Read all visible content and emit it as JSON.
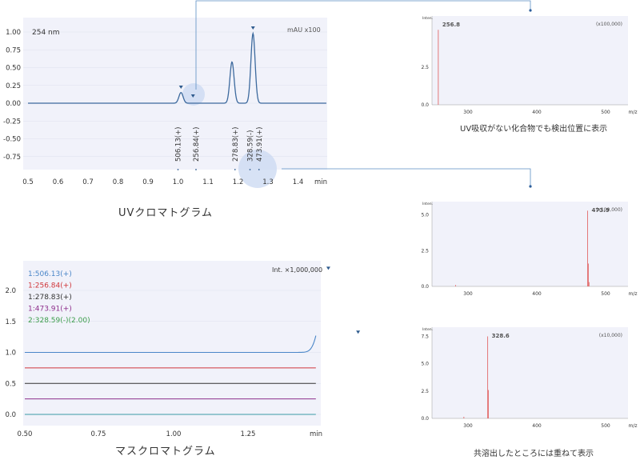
{
  "chart_data": [
    {
      "type": "line",
      "wavelength_label": "254 nm",
      "y_unit_label": "mAU x100",
      "xlabel": "min",
      "xlim": [
        0.5,
        1.5
      ],
      "ylim": [
        -0.9,
        1.1
      ],
      "x_ticks": [
        "0.5",
        "0.6",
        "0.7",
        "0.8",
        "0.9",
        "1.0",
        "1.1",
        "1.2",
        "1.3",
        "1.4"
      ],
      "y_ticks": [
        "1.00",
        "0.75",
        "0.50",
        "0.25",
        "0.00",
        "-0.25",
        "-0.50",
        "-0.75"
      ],
      "series": [
        {
          "color": "#3d6a9e",
          "peaks": [
            {
              "rt": 1.01,
              "height": 0.15,
              "width": 0.007
            },
            {
              "rt": 1.18,
              "height": 0.58,
              "width": 0.007
            },
            {
              "rt": 1.25,
              "height": 0.98,
              "width": 0.007
            }
          ]
        }
      ],
      "peak_markers": [
        1.01,
        1.05,
        1.25
      ],
      "peak_labels": [
        {
          "x": 1.0,
          "text": "506.13(+)"
        },
        {
          "x": 1.06,
          "text": "256.84(+)"
        },
        {
          "x": 1.19,
          "text": "278.83(+)"
        },
        {
          "x": 1.24,
          "text": "328.59(-)"
        },
        {
          "x": 1.27,
          "text": "473.91(+)"
        }
      ],
      "caption": "UVクロマトグラム"
    },
    {
      "type": "line",
      "intensity_label": "Int. ×1,000,000",
      "xlabel": "min",
      "xlim": [
        0.5,
        1.0
      ],
      "ylim": [
        -0.2,
        2.2
      ],
      "x_ticks": [
        "0.50",
        "0.75",
        "1.00",
        "1.25",
        "min"
      ],
      "y_ticks": [
        "2.0",
        "1.5",
        "1.0",
        "0.5",
        "0.0"
      ],
      "series": [
        {
          "name": "1:506.13(+)",
          "color": "#4a86c8",
          "baseline": 1.0,
          "peak_x": 1.01,
          "peak_height": 1.25,
          "marker_y": 2.33
        },
        {
          "name": "1:256.84(+)",
          "color": "#d0363a",
          "baseline": 0.75,
          "peak_x": 1.06,
          "peak_height": 0.45,
          "marker_y": 1.3
        },
        {
          "name": "1:278.83(+)",
          "color": "#333333",
          "baseline": 0.5,
          "peak_x": 1.2,
          "peak_height": 1.85,
          "marker_y": null
        },
        {
          "name": "1:473.91(+)",
          "color": "#8e2f8c",
          "baseline": 0.25,
          "peak_x": 1.27,
          "peak_height": 0.47,
          "marker_y": 0.88
        },
        {
          "name": "2:328.59(-)(2.00)",
          "color": "#3a9aa6",
          "baseline": 0.0,
          "peak_x": 1.27,
          "peak_height": 0.12,
          "marker_y": 0.24
        }
      ],
      "legend_colors": [
        "#4a86c8",
        "#d0363a",
        "#333333",
        "#8e2f8c",
        "#3d9e4c"
      ],
      "caption": "マスクロマトグラム"
    },
    {
      "type": "bar",
      "label": "Inten.",
      "peak_label": "256.8",
      "scale_label": "(x100,000)",
      "xlabel": "m/z",
      "x_ticks": [
        "300",
        "400",
        "500"
      ],
      "y_ticks": [
        "2.5",
        "0.0"
      ],
      "bars": [
        {
          "x": 256.8,
          "y": 5.0
        }
      ],
      "caption": "UV吸収がない化合物でも検出位置に表示"
    },
    {
      "type": "bar",
      "label": "Inten.",
      "peak_label": "473.9",
      "scale_label": "(x100,000)",
      "xlabel": "m/z",
      "x_ticks": [
        "300",
        "400",
        "500"
      ],
      "y_ticks": [
        "5.0",
        "2.5",
        "0.0"
      ],
      "bars": [
        {
          "x": 473.9,
          "y": 5.3
        },
        {
          "x": 474.9,
          "y": 1.6
        },
        {
          "x": 475.9,
          "y": 0.3
        },
        {
          "x": 282.0,
          "y": 0.1
        }
      ],
      "caption": ""
    },
    {
      "type": "bar",
      "label": "Inten.",
      "peak_label": "328.6",
      "scale_label": "(x10,000)",
      "xlabel": "m/z",
      "x_ticks": [
        "300",
        "400",
        "500"
      ],
      "y_ticks": [
        "7.5",
        "5.0",
        "2.5",
        "0.0"
      ],
      "bars": [
        {
          "x": 328.6,
          "y": 7.5
        },
        {
          "x": 329.6,
          "y": 2.6
        },
        {
          "x": 294.0,
          "y": 0.15
        }
      ],
      "caption": "共溶出したところには重ねて表示"
    }
  ]
}
